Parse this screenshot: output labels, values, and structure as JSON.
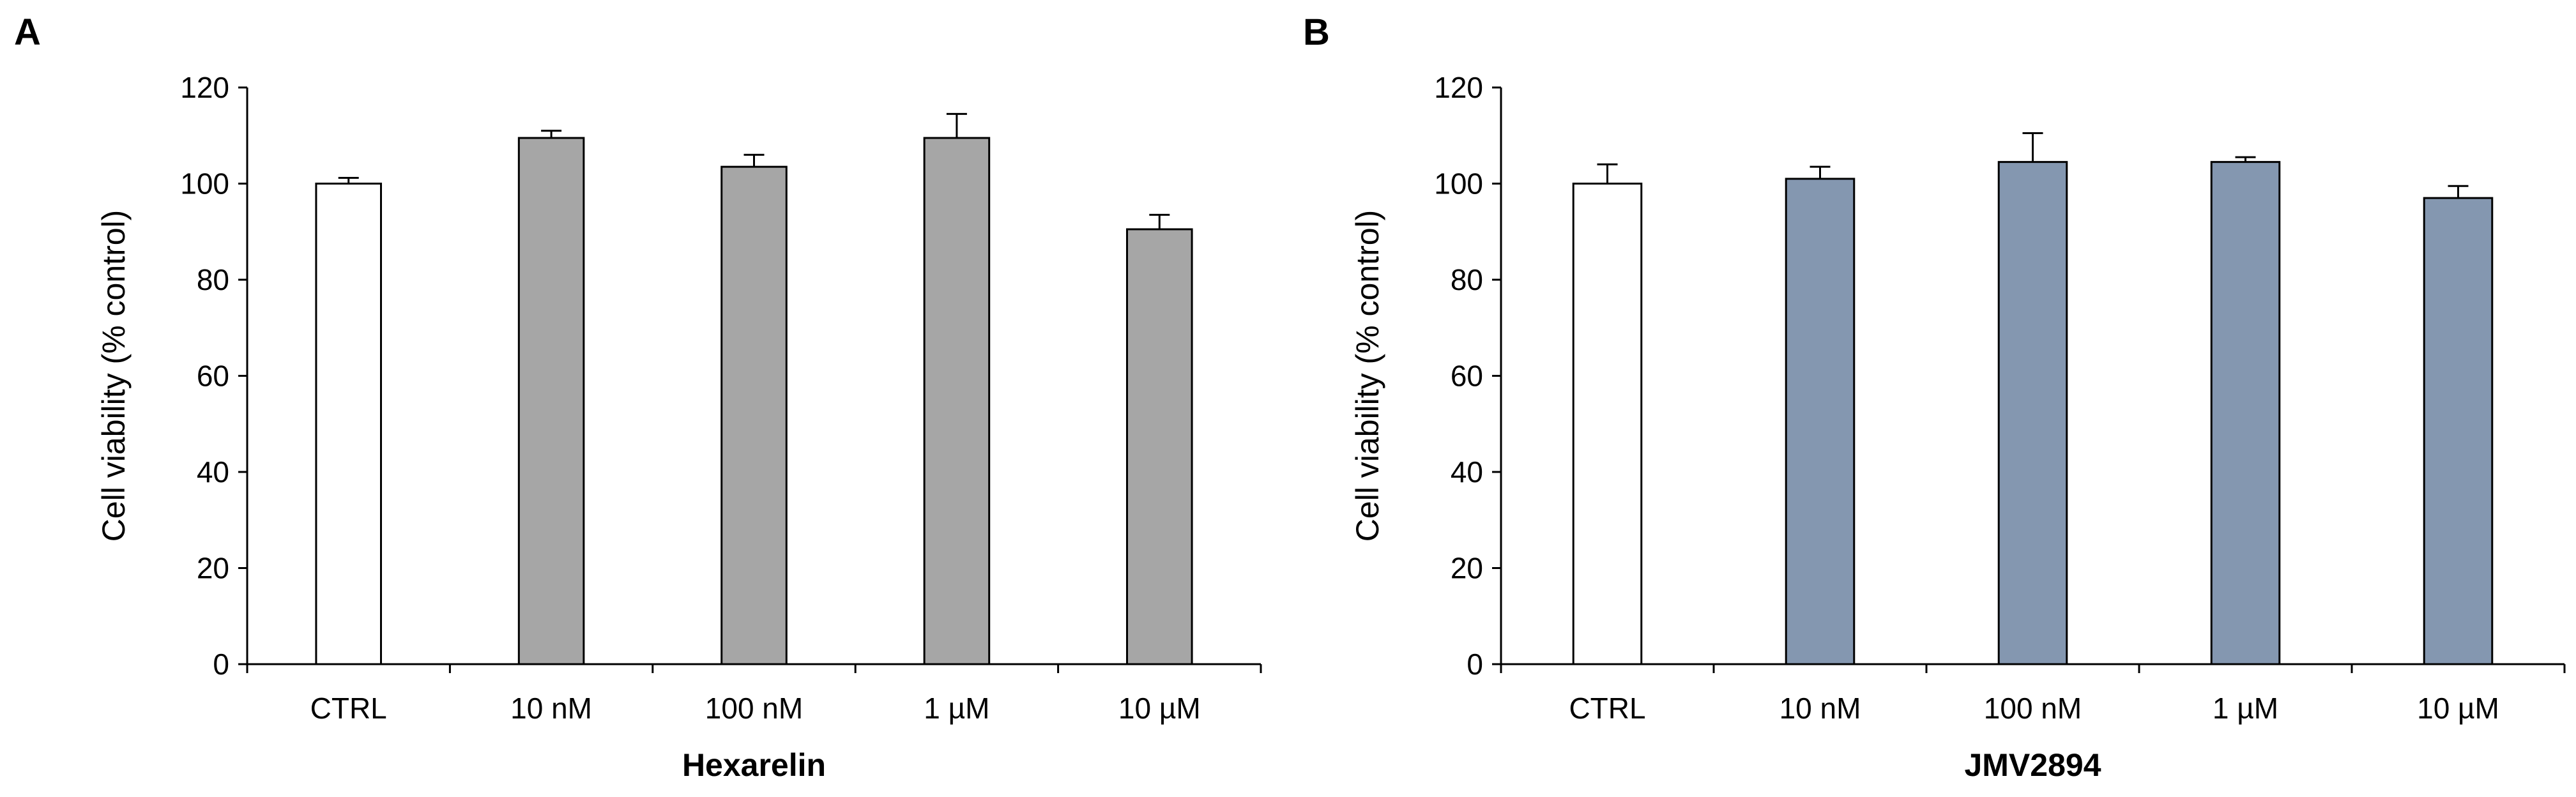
{
  "chart_data": [
    {
      "type": "bar",
      "panel": "A",
      "title": "",
      "xlabel": "Hexarelin",
      "ylabel": "Cell viability (% control)",
      "categories": [
        "CTRL",
        "10 nM",
        "100 nM",
        "1 µM",
        "10 µM"
      ],
      "values": [
        100,
        109.5,
        103.5,
        109.5,
        90.5
      ],
      "errors": [
        1.2,
        1.5,
        2.5,
        5,
        3
      ],
      "bar_colors": [
        "#ffffff",
        "#a6a6a6",
        "#a6a6a6",
        "#a6a6a6",
        "#a6a6a6"
      ],
      "ylim": [
        0,
        120
      ],
      "yticks": [
        0,
        20,
        40,
        60,
        80,
        100,
        120
      ],
      "grid": false
    },
    {
      "type": "bar",
      "panel": "B",
      "title": "",
      "xlabel": "JMV2894",
      "ylabel": "Cell viability (% control)",
      "categories": [
        "CTRL",
        "10 nM",
        "100 nM",
        "1 µM",
        "10 µM"
      ],
      "values": [
        100,
        101,
        104.5,
        104.5,
        97
      ],
      "errors": [
        4,
        2.5,
        6,
        1,
        2.5
      ],
      "bar_colors": [
        "#ffffff",
        "#8497b0",
        "#8497b0",
        "#8497b0",
        "#8497b0"
      ],
      "ylim": [
        0,
        120
      ],
      "yticks": [
        0,
        20,
        40,
        60,
        80,
        100,
        120
      ],
      "grid": false
    }
  ]
}
